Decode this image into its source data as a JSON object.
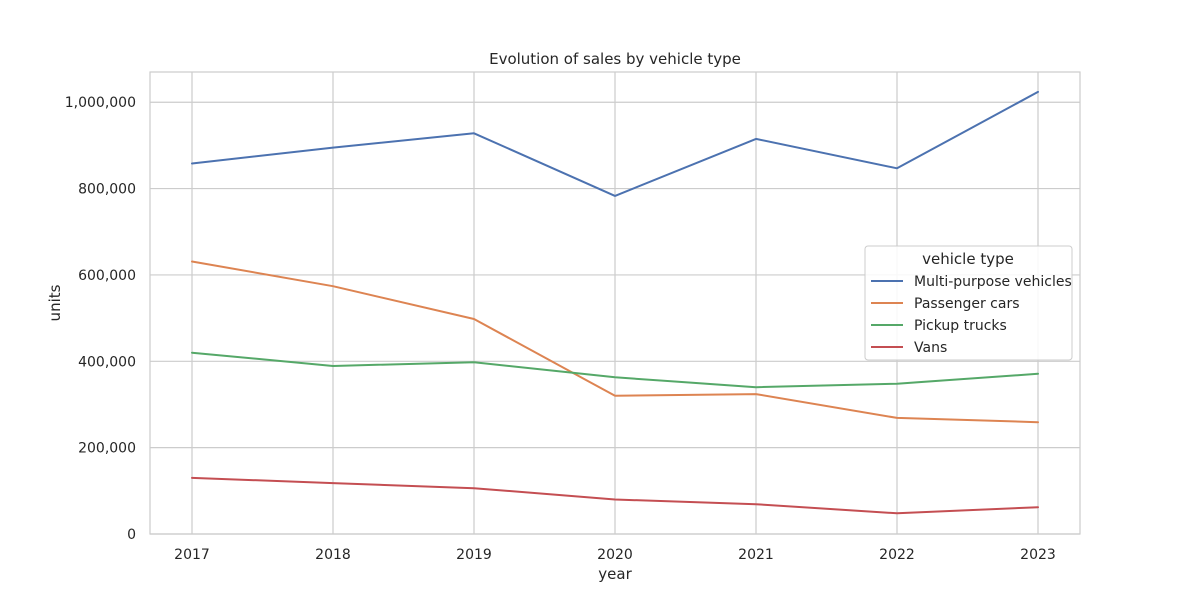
{
  "chart_data": {
    "type": "line",
    "title": "Evolution of sales by vehicle type",
    "xlabel": "year",
    "ylabel": "units",
    "x": [
      "2017",
      "2018",
      "2019",
      "2020",
      "2021",
      "2022",
      "2023"
    ],
    "ylim": [
      0,
      1070000
    ],
    "yticks": [
      0,
      200000,
      400000,
      600000,
      800000,
      1000000
    ],
    "ytick_labels": [
      "0",
      "200,000",
      "400,000",
      "600,000",
      "800,000",
      "1,000,000"
    ],
    "grid": true,
    "legend": {
      "title": "vehicle type",
      "placement": "center-right"
    },
    "series": [
      {
        "name": "Multi-purpose vehicles",
        "color": "#4c72b0",
        "values": [
          858000,
          895000,
          928000,
          783000,
          915000,
          847000,
          1024000
        ]
      },
      {
        "name": "Passenger cars",
        "color": "#dd8452",
        "values": [
          631000,
          574000,
          498000,
          320000,
          324000,
          269000,
          259000
        ]
      },
      {
        "name": "Pickup trucks",
        "color": "#55a868",
        "values": [
          420000,
          389000,
          398000,
          363000,
          340000,
          348000,
          371000
        ]
      },
      {
        "name": "Vans",
        "color": "#c44e52",
        "values": [
          130000,
          118000,
          106000,
          80000,
          69000,
          48000,
          62000
        ]
      }
    ]
  }
}
